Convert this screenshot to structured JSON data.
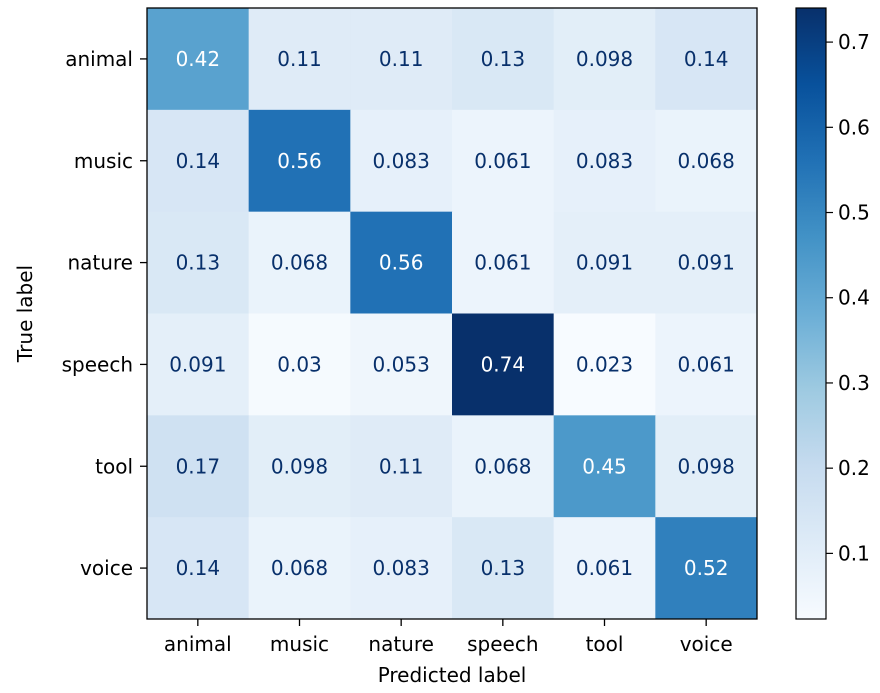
{
  "chart_data": {
    "type": "heatmap",
    "title": "",
    "xlabel": "Predicted label",
    "ylabel": "True label",
    "x_categories": [
      "animal",
      "music",
      "nature",
      "speech",
      "tool",
      "voice"
    ],
    "y_categories": [
      "animal",
      "music",
      "nature",
      "speech",
      "tool",
      "voice"
    ],
    "values": [
      [
        0.42,
        0.11,
        0.11,
        0.13,
        0.098,
        0.14
      ],
      [
        0.14,
        0.56,
        0.083,
        0.061,
        0.083,
        0.068
      ],
      [
        0.13,
        0.068,
        0.56,
        0.061,
        0.091,
        0.091
      ],
      [
        0.091,
        0.03,
        0.053,
        0.74,
        0.023,
        0.061
      ],
      [
        0.17,
        0.098,
        0.11,
        0.068,
        0.45,
        0.098
      ],
      [
        0.14,
        0.068,
        0.083,
        0.13,
        0.061,
        0.52
      ]
    ],
    "value_labels": [
      [
        "0.42",
        "0.11",
        "0.11",
        "0.13",
        "0.098",
        "0.14"
      ],
      [
        "0.14",
        "0.56",
        "0.083",
        "0.061",
        "0.083",
        "0.068"
      ],
      [
        "0.13",
        "0.068",
        "0.56",
        "0.061",
        "0.091",
        "0.091"
      ],
      [
        "0.091",
        "0.03",
        "0.053",
        "0.74",
        "0.023",
        "0.061"
      ],
      [
        "0.17",
        "0.098",
        "0.11",
        "0.068",
        "0.45",
        "0.098"
      ],
      [
        "0.14",
        "0.068",
        "0.083",
        "0.13",
        "0.061",
        "0.52"
      ]
    ],
    "colormap": "Blues",
    "color_range": [
      0.023,
      0.74
    ],
    "colorbar": {
      "ticks": [
        0.1,
        0.2,
        0.3,
        0.4,
        0.5,
        0.6,
        0.7
      ],
      "tick_labels": [
        "0.1",
        "0.2",
        "0.3",
        "0.4",
        "0.5",
        "0.6",
        "0.7"
      ],
      "placement": "right"
    },
    "text_color_light": "#ffffff",
    "text_color_dark": "#08306b"
  }
}
